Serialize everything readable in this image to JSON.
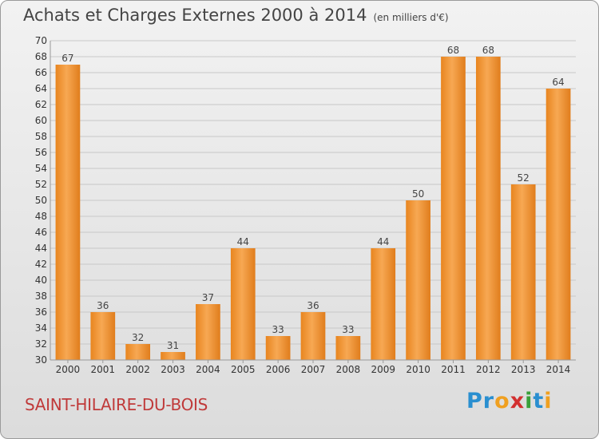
{
  "chart_data": {
    "type": "bar",
    "title": "Achats et Charges Externes 2000 à 2014",
    "unit_note": "(en milliers d'€)",
    "categories": [
      "2000",
      "2001",
      "2002",
      "2003",
      "2004",
      "2005",
      "2006",
      "2007",
      "2008",
      "2009",
      "2010",
      "2011",
      "2012",
      "2013",
      "2014"
    ],
    "values": [
      67,
      36,
      32,
      31,
      37,
      44,
      33,
      36,
      33,
      44,
      50,
      68,
      68,
      52,
      64
    ],
    "ylim": [
      30,
      70
    ],
    "ytick_step": 2,
    "grid": true,
    "bar_color": "#f5a04a",
    "bar_color_dark": "#e07d1c"
  },
  "footer": {
    "town": "SAINT-HILAIRE-DU-BOIS",
    "logo_letters": [
      "P",
      "r",
      "o",
      "x",
      "i",
      "t",
      "i"
    ],
    "logo_colors": [
      "#2a8fd0",
      "#2a8fd0",
      "#f0a020",
      "#d23030",
      "#3aa03a",
      "#2a8fd0",
      "#f0a020"
    ]
  }
}
